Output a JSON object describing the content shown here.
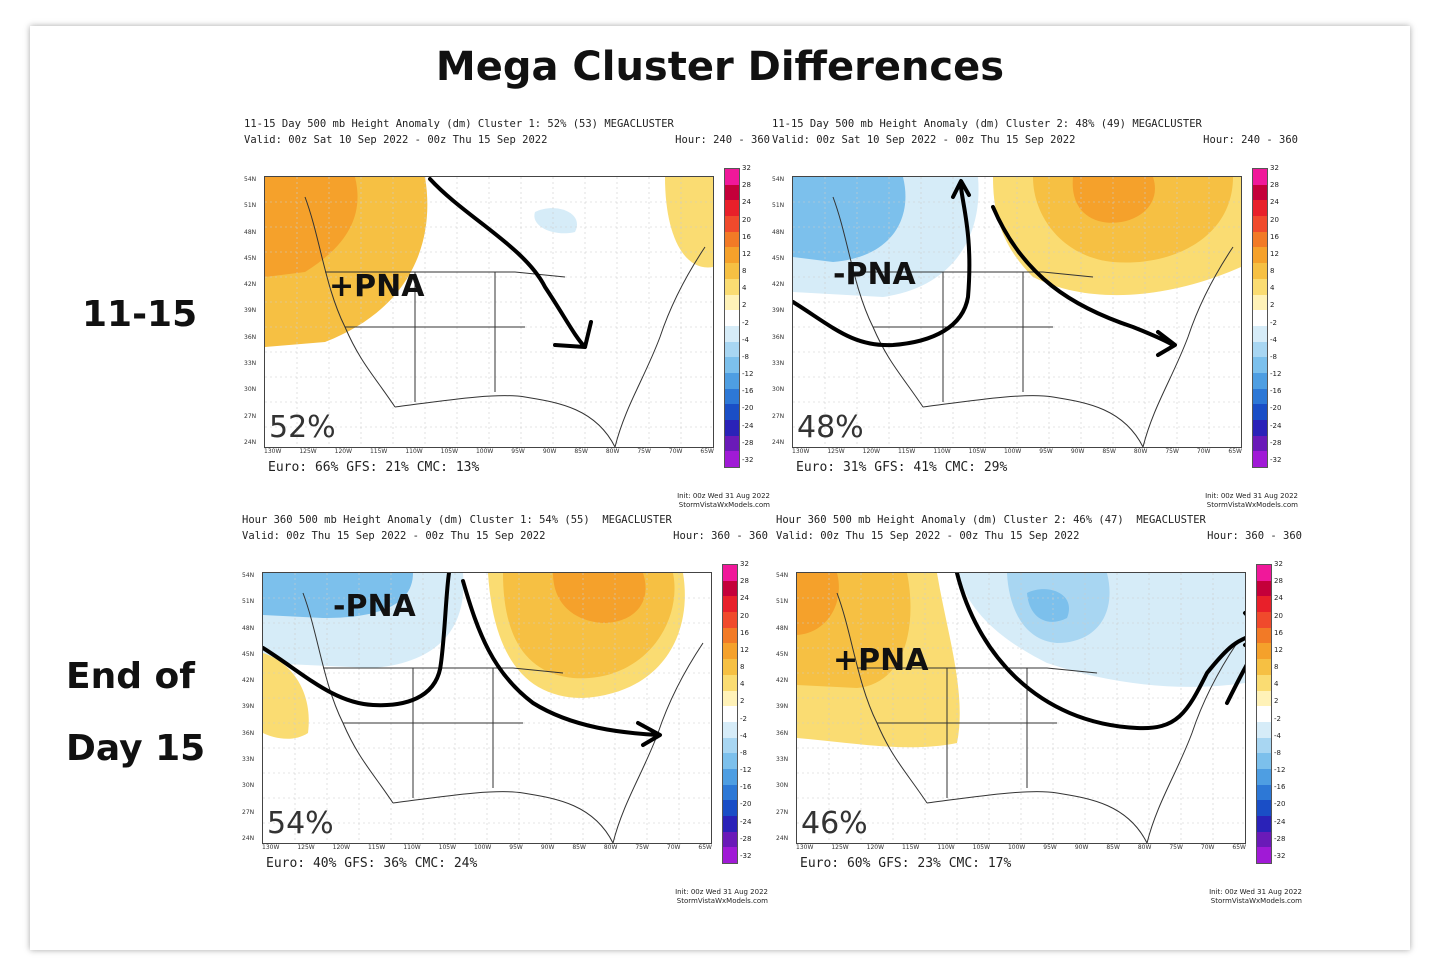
{
  "title": "Mega Cluster Differences",
  "row_labels": {
    "row1": "11-15",
    "row2_line1": "End of",
    "row2_line2": "Day 15"
  },
  "colorbar": {
    "labels": [
      "32",
      "28",
      "24",
      "20",
      "16",
      "12",
      "8",
      "4",
      "2",
      "-2",
      "-4",
      "-8",
      "-12",
      "-16",
      "-20",
      "-24",
      "-28",
      "-32"
    ],
    "colors": [
      "#f0189a",
      "#c4003a",
      "#e8202a",
      "#f04a2c",
      "#f27a26",
      "#f5a12b",
      "#f6c043",
      "#fadc72",
      "#fff2b8",
      "#ffffff",
      "#d6ecf8",
      "#a8d6f2",
      "#7cc0ec",
      "#4e9ee2",
      "#2d78d6",
      "#1a4ec6",
      "#2a22b8",
      "#6a1ab8",
      "#a01ad6"
    ]
  },
  "footer_init": "Init: 00z Wed 31 Aug 2022",
  "footer_site": "StormVistaWxModels.com",
  "lon_labels": [
    "130W",
    "125W",
    "120W",
    "115W",
    "110W",
    "105W",
    "100W",
    "95W",
    "90W",
    "85W",
    "80W",
    "75W",
    "70W",
    "65W"
  ],
  "lat_labels": [
    "54N",
    "51N",
    "48N",
    "45N",
    "42N",
    "39N",
    "36N",
    "33N",
    "30N",
    "27N",
    "24N"
  ],
  "panels": [
    {
      "header_left_1": "11-15 Day 500 mb Height Anomaly (dm) Cluster 1: 52% (53) MEGACLUSTER",
      "header_left_2": "Valid: 00z Sat 10 Sep 2022 - 00z Thu 15 Sep 2022",
      "header_right_2": "Hour: 240 - 360",
      "percent": "52%",
      "annotation": "+PNA",
      "models": "Euro: 66% GFS: 21% CMC: 13%"
    },
    {
      "header_left_1": "11-15 Day 500 mb Height Anomaly (dm) Cluster 2: 48% (49) MEGACLUSTER",
      "header_left_2": "Valid: 00z Sat 10 Sep 2022 - 00z Thu 15 Sep 2022",
      "header_right_2": "Hour: 240 - 360",
      "percent": "48%",
      "annotation": "-PNA",
      "models": "Euro: 31% GFS: 41% CMC: 29%"
    },
    {
      "header_left_1": "Hour 360 500 mb Height Anomaly (dm) Cluster 1: 54% (55)  MEGACLUSTER",
      "header_left_2": "Valid: 00z Thu 15 Sep 2022 - 00z Thu 15 Sep 2022",
      "header_right_2": "Hour: 360 - 360",
      "percent": "54%",
      "annotation": "-PNA",
      "models": "Euro: 40% GFS: 36% CMC: 24%"
    },
    {
      "header_left_1": "Hour 360 500 mb Height Anomaly (dm) Cluster 2: 46% (47)  MEGACLUSTER",
      "header_left_2": "Valid: 00z Thu 15 Sep 2022 - 00z Thu 15 Sep 2022",
      "header_right_2": "Hour: 360 - 360",
      "percent": "46%",
      "annotation": "+PNA",
      "models": "Euro: 60% GFS: 23% CMC: 17%"
    }
  ]
}
